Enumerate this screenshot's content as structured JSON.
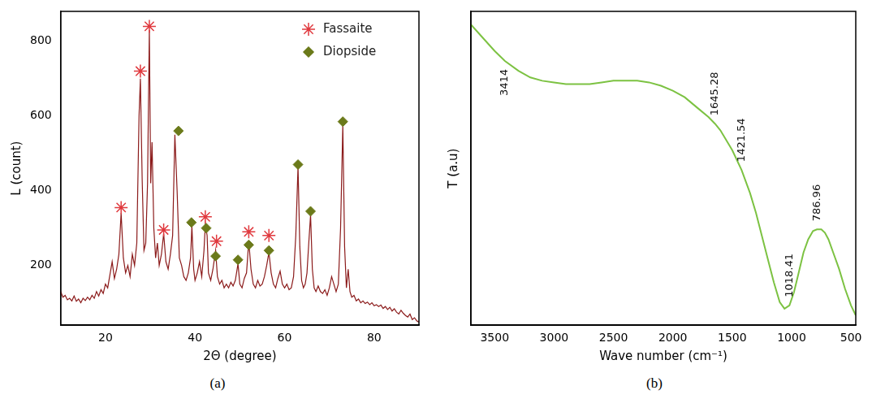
{
  "chart_data": [
    {
      "type": "line",
      "panel": "(a)",
      "x_label": "2Θ (degree)",
      "y_label": "L (count)",
      "x": [
        10,
        10.5,
        11,
        11.5,
        12,
        12.5,
        13,
        13.5,
        14,
        14.5,
        15,
        15.5,
        16,
        16.5,
        17,
        17.5,
        18,
        18.5,
        19,
        19.5,
        20,
        20.5,
        21,
        21.5,
        22,
        22.5,
        23,
        23.5,
        24,
        24.5,
        25,
        25.5,
        26,
        26.5,
        27,
        27.5,
        27.8,
        28.2,
        28.6,
        29,
        29.4,
        29.8,
        30.1,
        30.4,
        30.8,
        31.2,
        31.6,
        32,
        32.5,
        33,
        33.5,
        34,
        34.5,
        35,
        35.5,
        36,
        36.5,
        37,
        37.5,
        38,
        38.5,
        39,
        39.3,
        39.7,
        40,
        40.5,
        41,
        41.5,
        42,
        42.3,
        42.7,
        43,
        43.5,
        44,
        44.6,
        45,
        45.5,
        46,
        46.5,
        47,
        47.5,
        48,
        48.5,
        49,
        49.6,
        50,
        50.5,
        51,
        51.5,
        52,
        52.5,
        53,
        53.5,
        54,
        54.5,
        55,
        55.5,
        56,
        56.5,
        57,
        57.5,
        58,
        58.5,
        59,
        59.5,
        60,
        60.5,
        61,
        61.5,
        62,
        62.5,
        63,
        63.4,
        63.8,
        64.2,
        64.6,
        65,
        65.4,
        65.8,
        66.2,
        66.6,
        67,
        67.5,
        68,
        68.5,
        69,
        69.5,
        70,
        70.5,
        71,
        71.5,
        72,
        72.5,
        73,
        73.4,
        73.8,
        74.2,
        74.6,
        75,
        75.5,
        76,
        76.5,
        77,
        77.5,
        78,
        78.5,
        79,
        79.5,
        80,
        80.5,
        81,
        81.5,
        82,
        82.5,
        83,
        83.5,
        84,
        84.5,
        85,
        85.5,
        86,
        86.5,
        87,
        87.5,
        88,
        88.5,
        89,
        89.5,
        90
      ],
      "values": [
        130,
        115,
        120,
        108,
        112,
        105,
        118,
        104,
        110,
        100,
        112,
        106,
        115,
        108,
        120,
        112,
        130,
        118,
        135,
        125,
        150,
        140,
        175,
        210,
        165,
        190,
        230,
        340,
        220,
        180,
        200,
        170,
        230,
        200,
        260,
        600,
        700,
        430,
        240,
        260,
        420,
        830,
        420,
        530,
        300,
        220,
        260,
        200,
        230,
        285,
        210,
        190,
        230,
        280,
        550,
        400,
        220,
        200,
        170,
        160,
        180,
        220,
        305,
        190,
        160,
        180,
        210,
        170,
        240,
        310,
        280,
        180,
        160,
        190,
        240,
        170,
        150,
        160,
        140,
        150,
        140,
        155,
        145,
        160,
        205,
        150,
        140,
        165,
        180,
        265,
        190,
        150,
        140,
        160,
        145,
        150,
        170,
        200,
        235,
        180,
        150,
        140,
        165,
        185,
        150,
        140,
        150,
        135,
        140,
        170,
        280,
        465,
        250,
        160,
        140,
        150,
        180,
        260,
        335,
        190,
        140,
        130,
        145,
        130,
        125,
        135,
        120,
        140,
        170,
        150,
        130,
        150,
        300,
        575,
        250,
        140,
        190,
        130,
        115,
        120,
        105,
        110,
        100,
        105,
        98,
        102,
        95,
        100,
        92,
        95,
        90,
        94,
        85,
        90,
        82,
        88,
        78,
        84,
        75,
        70,
        80,
        72,
        66,
        62,
        70,
        55,
        60,
        52,
        48
      ],
      "color": "#8b1a1a",
      "series": [
        {
          "name": "Fassaite",
          "type": "scatter",
          "marker": "star",
          "color": "#e0393e",
          "x": [
            23.5,
            27.8,
            29.8,
            33,
            42.3,
            44.8,
            52,
            56.5
          ],
          "values": [
            355,
            720,
            840,
            295,
            330,
            265,
            290,
            280
          ]
        },
        {
          "name": "Diopside",
          "type": "scatter",
          "marker": "diamond",
          "color": "#6b7a1a",
          "x": [
            36.3,
            39.2,
            42.5,
            44.6,
            49.6,
            52,
            56.5,
            63,
            65.8,
            73
          ],
          "values": [
            560,
            315,
            300,
            225,
            215,
            255,
            240,
            470,
            345,
            585
          ]
        }
      ],
      "xlim": [
        10,
        90
      ],
      "xticks": [
        20,
        40,
        60,
        80
      ],
      "ylim": [
        40,
        880
      ],
      "yticks": [
        200,
        400,
        600,
        800
      ],
      "grid": false,
      "legend": "upper right"
    },
    {
      "type": "line",
      "panel": "(b)",
      "x_label": "Wave number (cm⁻¹)",
      "y_label": "T (a.u)",
      "x": [
        3700,
        3600,
        3500,
        3414,
        3300,
        3200,
        3100,
        3000,
        2900,
        2800,
        2700,
        2600,
        2500,
        2400,
        2300,
        2200,
        2100,
        2000,
        1900,
        1800,
        1700,
        1645.28,
        1600,
        1500,
        1421.54,
        1350,
        1300,
        1250,
        1200,
        1150,
        1100,
        1060,
        1018.41,
        980,
        940,
        900,
        860,
        820,
        786.96,
        750,
        720,
        690,
        650,
        600,
        550,
        500,
        460
      ],
      "values": [
        0.96,
        0.92,
        0.88,
        0.85,
        0.82,
        0.8,
        0.79,
        0.785,
        0.78,
        0.78,
        0.78,
        0.785,
        0.79,
        0.79,
        0.79,
        0.785,
        0.775,
        0.76,
        0.74,
        0.71,
        0.68,
        0.66,
        0.64,
        0.58,
        0.52,
        0.45,
        0.39,
        0.32,
        0.25,
        0.18,
        0.12,
        0.1,
        0.11,
        0.15,
        0.21,
        0.27,
        0.31,
        0.335,
        0.34,
        0.34,
        0.33,
        0.31,
        0.27,
        0.22,
        0.16,
        0.11,
        0.08
      ],
      "color": "#7cc242",
      "xlim": [
        3700,
        460
      ],
      "xticks": [
        3500,
        3000,
        2500,
        2000,
        1500,
        1000,
        500
      ],
      "ylim": [
        0.05,
        1.0
      ],
      "tick_labels": "x",
      "grid": false,
      "annotations": [
        {
          "x": 3414,
          "label": "3414"
        },
        {
          "x": 1645.28,
          "label": "1645.28"
        },
        {
          "x": 1421.54,
          "label": "1421.54"
        },
        {
          "x": 1018.41,
          "label": "1018.41"
        },
        {
          "x": 786.96,
          "label": "786.96"
        }
      ]
    }
  ]
}
